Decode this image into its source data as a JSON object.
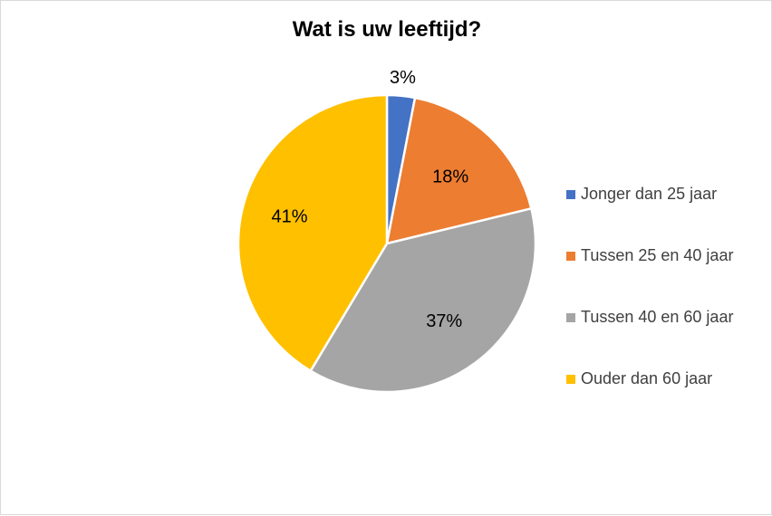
{
  "chart_data": {
    "type": "pie",
    "title": "Wat is uw leeftijd?",
    "categories": [
      "Jonger dan 25 jaar",
      "Tussen 25 en 40 jaar",
      "Tussen 40 en 60 jaar",
      "Ouder dan 60 jaar"
    ],
    "values": [
      3,
      18,
      37,
      41
    ],
    "data_labels": [
      "3%",
      "18%",
      "37%",
      "41%"
    ],
    "colors": [
      "#4472C4",
      "#ED7D31",
      "#A5A5A5",
      "#FFC000"
    ],
    "legend_position": "right",
    "start_angle": "top",
    "direction": "clockwise"
  }
}
